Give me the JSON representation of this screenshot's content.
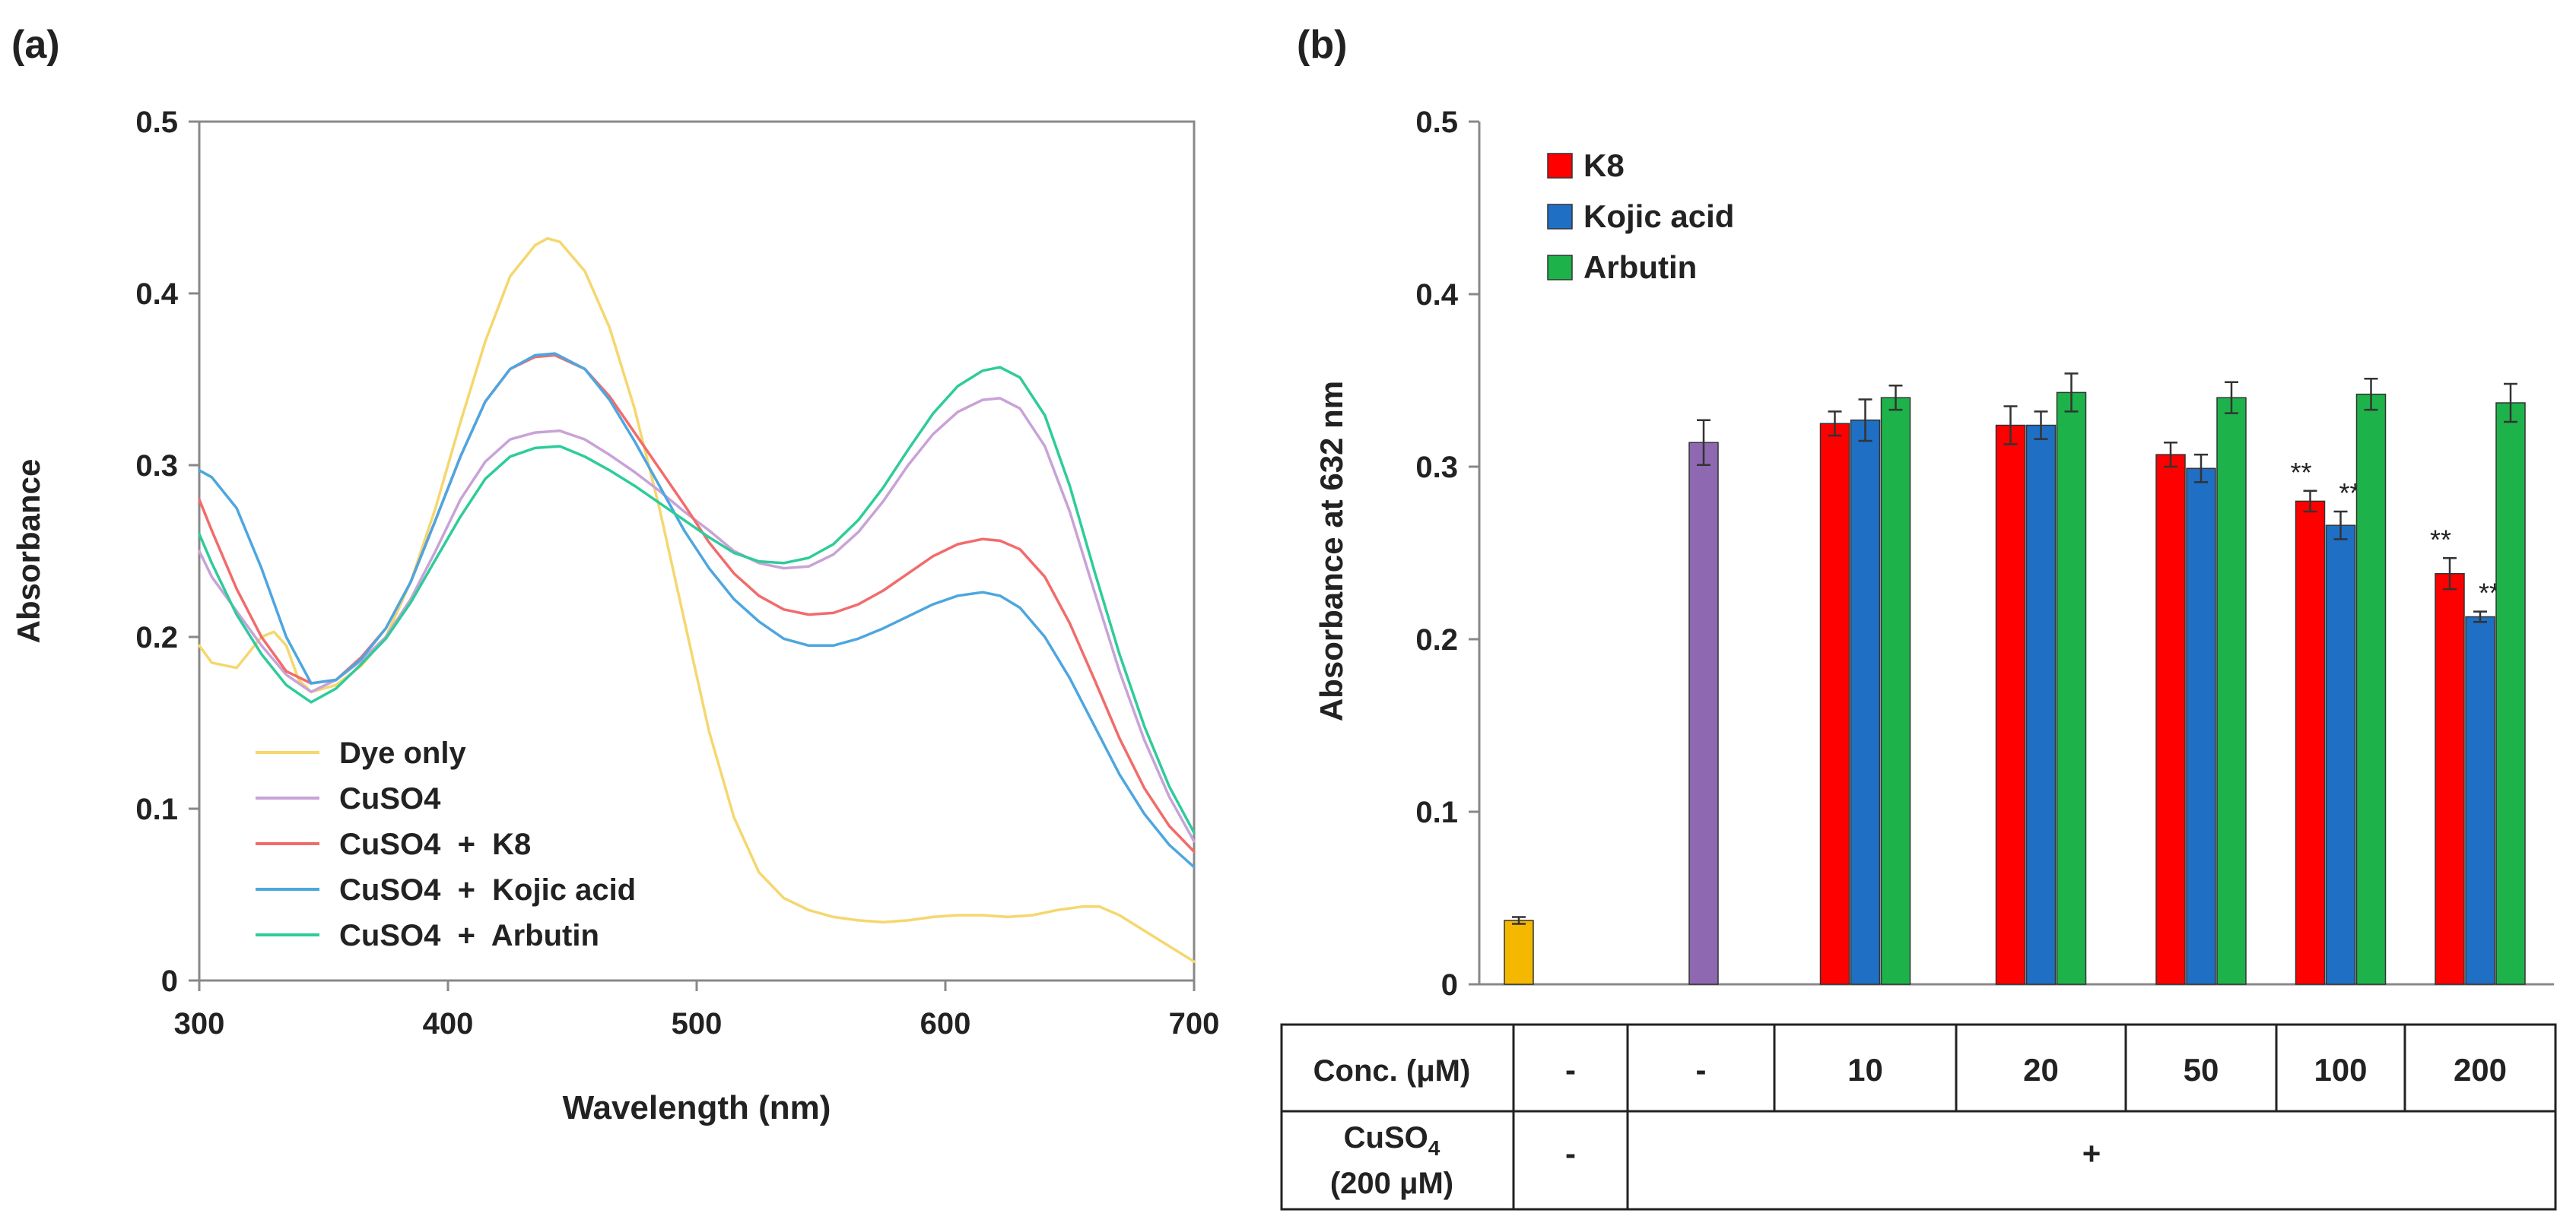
{
  "chart_data": [
    {
      "panel_label": "(a)",
      "type": "line",
      "title": "",
      "xlabel": "Wavelength (nm)",
      "ylabel": "Absorbance",
      "xlim": [
        300,
        700
      ],
      "ylim": [
        0,
        0.5
      ],
      "xticks": [
        300,
        400,
        500,
        600,
        700
      ],
      "xtick_labels": [
        "300",
        "400",
        "500",
        "600",
        "700"
      ],
      "yticks": [
        0,
        0.1,
        0.2,
        0.3,
        0.4,
        0.5
      ],
      "ytick_labels": [
        "0",
        "0.1",
        "0.2",
        "0.3",
        "0.4",
        "0.5"
      ],
      "grid": false,
      "legend_position": "bottom-left",
      "series": [
        {
          "name": "Dye only",
          "color": "#f5d76e",
          "points": [
            [
              300,
              0.195
            ],
            [
              305,
              0.185
            ],
            [
              315,
              0.182
            ],
            [
              325,
              0.2
            ],
            [
              330,
              0.203
            ],
            [
              335,
              0.195
            ],
            [
              340,
              0.175
            ],
            [
              345,
              0.168
            ],
            [
              355,
              0.172
            ],
            [
              365,
              0.183
            ],
            [
              375,
              0.2
            ],
            [
              385,
              0.232
            ],
            [
              395,
              0.275
            ],
            [
              405,
              0.325
            ],
            [
              415,
              0.372
            ],
            [
              425,
              0.41
            ],
            [
              435,
              0.428
            ],
            [
              440,
              0.432
            ],
            [
              445,
              0.43
            ],
            [
              455,
              0.413
            ],
            [
              465,
              0.38
            ],
            [
              475,
              0.333
            ],
            [
              485,
              0.275
            ],
            [
              495,
              0.21
            ],
            [
              505,
              0.145
            ],
            [
              515,
              0.095
            ],
            [
              525,
              0.063
            ],
            [
              535,
              0.048
            ],
            [
              545,
              0.041
            ],
            [
              555,
              0.037
            ],
            [
              565,
              0.035
            ],
            [
              575,
              0.034
            ],
            [
              585,
              0.035
            ],
            [
              595,
              0.037
            ],
            [
              605,
              0.038
            ],
            [
              615,
              0.038
            ],
            [
              625,
              0.037
            ],
            [
              635,
              0.038
            ],
            [
              645,
              0.041
            ],
            [
              655,
              0.043
            ],
            [
              662,
              0.043
            ],
            [
              670,
              0.038
            ],
            [
              680,
              0.029
            ],
            [
              690,
              0.02
            ],
            [
              700,
              0.011
            ]
          ]
        },
        {
          "name": "CuSO4",
          "color": "#c8a2d8",
          "points": [
            [
              300,
              0.25
            ],
            [
              305,
              0.235
            ],
            [
              315,
              0.215
            ],
            [
              325,
              0.195
            ],
            [
              335,
              0.178
            ],
            [
              345,
              0.168
            ],
            [
              355,
              0.175
            ],
            [
              365,
              0.186
            ],
            [
              375,
              0.2
            ],
            [
              385,
              0.222
            ],
            [
              395,
              0.25
            ],
            [
              405,
              0.28
            ],
            [
              415,
              0.302
            ],
            [
              425,
              0.315
            ],
            [
              435,
              0.319
            ],
            [
              445,
              0.32
            ],
            [
              455,
              0.315
            ],
            [
              465,
              0.306
            ],
            [
              475,
              0.296
            ],
            [
              485,
              0.285
            ],
            [
              495,
              0.273
            ],
            [
              505,
              0.262
            ],
            [
              515,
              0.25
            ],
            [
              525,
              0.243
            ],
            [
              535,
              0.24
            ],
            [
              545,
              0.241
            ],
            [
              555,
              0.248
            ],
            [
              565,
              0.261
            ],
            [
              575,
              0.279
            ],
            [
              585,
              0.3
            ],
            [
              595,
              0.318
            ],
            [
              605,
              0.331
            ],
            [
              615,
              0.338
            ],
            [
              622,
              0.339
            ],
            [
              630,
              0.333
            ],
            [
              640,
              0.311
            ],
            [
              650,
              0.273
            ],
            [
              660,
              0.226
            ],
            [
              670,
              0.18
            ],
            [
              680,
              0.14
            ],
            [
              690,
              0.107
            ],
            [
              700,
              0.081
            ]
          ]
        },
        {
          "name": "CuSO4  +  K8",
          "color": "#f26b6b",
          "points": [
            [
              300,
              0.28
            ],
            [
              305,
              0.262
            ],
            [
              315,
              0.228
            ],
            [
              325,
              0.2
            ],
            [
              335,
              0.18
            ],
            [
              345,
              0.173
            ],
            [
              355,
              0.175
            ],
            [
              365,
              0.188
            ],
            [
              375,
              0.205
            ],
            [
              385,
              0.232
            ],
            [
              395,
              0.268
            ],
            [
              405,
              0.305
            ],
            [
              415,
              0.337
            ],
            [
              425,
              0.356
            ],
            [
              435,
              0.363
            ],
            [
              443,
              0.364
            ],
            [
              455,
              0.356
            ],
            [
              465,
              0.34
            ],
            [
              475,
              0.319
            ],
            [
              485,
              0.298
            ],
            [
              495,
              0.277
            ],
            [
              505,
              0.255
            ],
            [
              515,
              0.237
            ],
            [
              525,
              0.224
            ],
            [
              535,
              0.216
            ],
            [
              545,
              0.213
            ],
            [
              555,
              0.214
            ],
            [
              565,
              0.219
            ],
            [
              575,
              0.227
            ],
            [
              585,
              0.237
            ],
            [
              595,
              0.247
            ],
            [
              605,
              0.254
            ],
            [
              615,
              0.257
            ],
            [
              622,
              0.256
            ],
            [
              630,
              0.251
            ],
            [
              640,
              0.235
            ],
            [
              650,
              0.208
            ],
            [
              660,
              0.175
            ],
            [
              670,
              0.141
            ],
            [
              680,
              0.112
            ],
            [
              690,
              0.09
            ],
            [
              700,
              0.075
            ]
          ]
        },
        {
          "name": "CuSO4  +  Kojic acid",
          "color": "#4da6e0",
          "points": [
            [
              300,
              0.297
            ],
            [
              305,
              0.293
            ],
            [
              315,
              0.275
            ],
            [
              325,
              0.24
            ],
            [
              335,
              0.2
            ],
            [
              345,
              0.173
            ],
            [
              355,
              0.175
            ],
            [
              365,
              0.187
            ],
            [
              375,
              0.205
            ],
            [
              385,
              0.232
            ],
            [
              395,
              0.268
            ],
            [
              405,
              0.305
            ],
            [
              415,
              0.337
            ],
            [
              425,
              0.356
            ],
            [
              435,
              0.364
            ],
            [
              443,
              0.365
            ],
            [
              455,
              0.356
            ],
            [
              465,
              0.338
            ],
            [
              475,
              0.314
            ],
            [
              485,
              0.288
            ],
            [
              495,
              0.262
            ],
            [
              505,
              0.24
            ],
            [
              515,
              0.222
            ],
            [
              525,
              0.209
            ],
            [
              535,
              0.199
            ],
            [
              545,
              0.195
            ],
            [
              555,
              0.195
            ],
            [
              565,
              0.199
            ],
            [
              575,
              0.205
            ],
            [
              585,
              0.212
            ],
            [
              595,
              0.219
            ],
            [
              605,
              0.224
            ],
            [
              615,
              0.226
            ],
            [
              622,
              0.224
            ],
            [
              630,
              0.217
            ],
            [
              640,
              0.2
            ],
            [
              650,
              0.176
            ],
            [
              660,
              0.148
            ],
            [
              670,
              0.12
            ],
            [
              680,
              0.097
            ],
            [
              690,
              0.079
            ],
            [
              700,
              0.066
            ]
          ]
        },
        {
          "name": "CuSO4  +  Arbutin",
          "color": "#2ecc9a",
          "points": [
            [
              300,
              0.26
            ],
            [
              305,
              0.243
            ],
            [
              315,
              0.213
            ],
            [
              325,
              0.19
            ],
            [
              335,
              0.172
            ],
            [
              345,
              0.162
            ],
            [
              355,
              0.17
            ],
            [
              365,
              0.184
            ],
            [
              375,
              0.199
            ],
            [
              385,
              0.22
            ],
            [
              395,
              0.245
            ],
            [
              405,
              0.27
            ],
            [
              415,
              0.292
            ],
            [
              425,
              0.305
            ],
            [
              435,
              0.31
            ],
            [
              445,
              0.311
            ],
            [
              455,
              0.305
            ],
            [
              465,
              0.297
            ],
            [
              475,
              0.288
            ],
            [
              485,
              0.278
            ],
            [
              495,
              0.268
            ],
            [
              505,
              0.258
            ],
            [
              515,
              0.249
            ],
            [
              525,
              0.244
            ],
            [
              535,
              0.243
            ],
            [
              545,
              0.246
            ],
            [
              555,
              0.254
            ],
            [
              565,
              0.268
            ],
            [
              575,
              0.287
            ],
            [
              585,
              0.309
            ],
            [
              595,
              0.33
            ],
            [
              605,
              0.346
            ],
            [
              615,
              0.355
            ],
            [
              622,
              0.357
            ],
            [
              630,
              0.351
            ],
            [
              640,
              0.329
            ],
            [
              650,
              0.288
            ],
            [
              660,
              0.238
            ],
            [
              670,
              0.19
            ],
            [
              680,
              0.148
            ],
            [
              690,
              0.113
            ],
            [
              700,
              0.086
            ]
          ]
        }
      ]
    },
    {
      "panel_label": "(b)",
      "type": "bar",
      "title": "",
      "xlabel": "",
      "ylabel": "Absorbance at 632 nm",
      "ylim": [
        0,
        0.5
      ],
      "yticks": [
        0,
        0.1,
        0.2,
        0.3,
        0.4,
        0.5
      ],
      "ytick_labels": [
        "0",
        "0.1",
        "0.2",
        "0.3",
        "0.4",
        "0.5"
      ],
      "grid": false,
      "legend_position": "top-left",
      "legend": [
        {
          "name": "K8",
          "color": "#ff0000"
        },
        {
          "name": "Kojic acid",
          "color": "#1f6fc5"
        },
        {
          "name": "Arbutin",
          "color": "#1db34a"
        }
      ],
      "controls": [
        {
          "name": "Dye only",
          "color": "#f5b800",
          "value": 0.037,
          "error": 0.002
        },
        {
          "name": "CuSO4",
          "color": "#8e68b0",
          "value": 0.314,
          "error": 0.013
        }
      ],
      "categories": [
        "10",
        "20",
        "50",
        "100",
        "200"
      ],
      "series": [
        {
          "name": "K8",
          "color": "#ff0000",
          "values": [
            0.325,
            0.324,
            0.307,
            0.28,
            0.238
          ],
          "errors": [
            0.007,
            0.011,
            0.007,
            0.006,
            0.009
          ],
          "significance": [
            "",
            "",
            "",
            "**",
            "**"
          ]
        },
        {
          "name": "Kojic acid",
          "color": "#1f6fc5",
          "values": [
            0.327,
            0.324,
            0.299,
            0.266,
            0.213
          ],
          "errors": [
            0.012,
            0.008,
            0.008,
            0.008,
            0.003
          ],
          "significance": [
            "",
            "",
            "",
            "**",
            "**"
          ]
        },
        {
          "name": "Arbutin",
          "color": "#1db34a",
          "values": [
            0.34,
            0.343,
            0.34,
            0.342,
            0.337
          ],
          "errors": [
            0.007,
            0.011,
            0.009,
            0.009,
            0.011
          ],
          "significance": [
            "",
            "",
            "",
            "",
            ""
          ]
        }
      ],
      "table": {
        "row1_header": "Conc. (μM)",
        "row1_values": [
          "-",
          "-",
          "10",
          "20",
          "50",
          "100",
          "200"
        ],
        "row2_header_main": "CuSO",
        "row2_header_sub": "4",
        "row2_header_line2": "(200 μM)",
        "row2_values": [
          "-",
          "+"
        ]
      }
    }
  ]
}
